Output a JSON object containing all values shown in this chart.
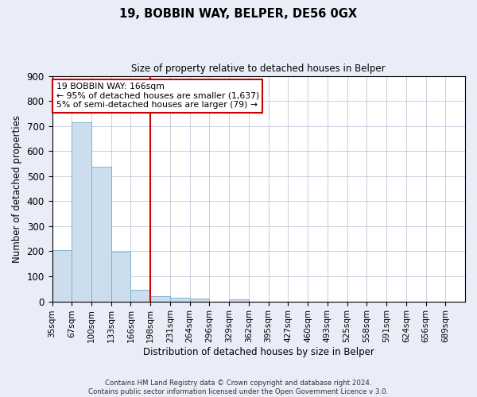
{
  "title": "19, BOBBIN WAY, BELPER, DE56 0GX",
  "subtitle": "Size of property relative to detached houses in Belper",
  "xlabel": "Distribution of detached houses by size in Belper",
  "ylabel": "Number of detached properties",
  "bin_labels": [
    "35sqm",
    "67sqm",
    "100sqm",
    "133sqm",
    "166sqm",
    "198sqm",
    "231sqm",
    "264sqm",
    "296sqm",
    "329sqm",
    "362sqm",
    "395sqm",
    "427sqm",
    "460sqm",
    "493sqm",
    "525sqm",
    "558sqm",
    "591sqm",
    "624sqm",
    "656sqm",
    "689sqm"
  ],
  "bar_values": [
    204,
    715,
    537,
    197,
    46,
    22,
    13,
    10,
    0,
    8,
    0,
    0,
    0,
    0,
    0,
    0,
    0,
    0,
    0,
    0,
    0
  ],
  "bar_color": "#ccdded",
  "bar_edgecolor": "#7aaac8",
  "vline_x": 5,
  "vline_color": "#cc0000",
  "ylim": [
    0,
    900
  ],
  "yticks": [
    0,
    100,
    200,
    300,
    400,
    500,
    600,
    700,
    800,
    900
  ],
  "annotation_box_text": "19 BOBBIN WAY: 166sqm\n← 95% of detached houses are smaller (1,637)\n5% of semi-detached houses are larger (79) →",
  "footer_text": "Contains HM Land Registry data © Crown copyright and database right 2024.\nContains public sector information licensed under the Open Government Licence v 3.0.",
  "bg_color": "#e8edf8",
  "plot_bg_color": "#ffffff",
  "grid_color": "#c0c8d8"
}
